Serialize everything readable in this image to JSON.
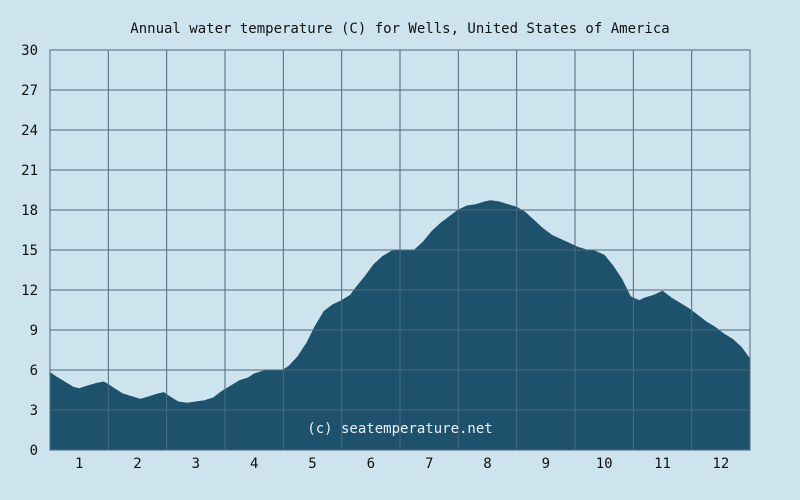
{
  "colors": {
    "background": "#cde3ee",
    "area_fill": "#1e516b",
    "grid": "#4a6a7e",
    "text": "#111111",
    "watermark": "#e8f2f8"
  },
  "chart_data": {
    "type": "area",
    "title": "Annual water temperature (C) for Wells, United States of America",
    "watermark": "(c) seatemperature.net",
    "xlabel": "",
    "ylabel": "",
    "ylim": [
      0,
      30
    ],
    "xlim": [
      0.5,
      12.5
    ],
    "y_ticks": [
      "0",
      "3",
      "6",
      "9",
      "12",
      "15",
      "18",
      "21",
      "24",
      "27",
      "30"
    ],
    "x_ticks": [
      "1",
      "2",
      "3",
      "4",
      "5",
      "6",
      "7",
      "8",
      "9",
      "10",
      "11",
      "12"
    ],
    "grid": true,
    "series": [
      {
        "x": [
          0.5,
          0.6,
          0.75,
          0.9,
          1.0,
          1.15,
          1.3,
          1.42,
          1.5,
          1.6,
          1.75,
          1.9,
          2.05,
          2.2,
          2.35,
          2.45,
          2.55,
          2.7,
          2.85,
          3.0,
          3.15,
          3.3,
          3.45,
          3.6,
          3.75,
          3.9,
          4.0,
          4.15,
          4.3,
          4.5,
          4.6,
          4.75,
          4.9,
          5.05,
          5.2,
          5.35,
          5.5,
          5.65,
          5.75,
          5.9,
          6.05,
          6.2,
          6.35,
          6.5,
          6.6,
          6.75,
          6.9,
          7.05,
          7.2,
          7.35,
          7.5,
          7.65,
          7.8,
          7.95,
          8.05,
          8.2,
          8.35,
          8.5,
          8.65,
          8.8,
          8.95,
          9.1,
          9.25,
          9.4,
          9.55,
          9.7,
          9.85,
          10.0,
          10.15,
          10.3,
          10.45,
          10.6,
          10.7,
          10.85,
          11.0,
          11.15,
          11.3,
          11.45,
          11.6,
          11.75,
          11.9,
          12.05,
          12.2,
          12.35,
          12.5
        ],
        "values": [
          5.8,
          5.5,
          5.1,
          4.7,
          4.6,
          4.8,
          5.0,
          5.1,
          4.9,
          4.6,
          4.2,
          4.0,
          3.8,
          4.0,
          4.2,
          4.3,
          4.0,
          3.6,
          3.5,
          3.6,
          3.7,
          3.9,
          4.4,
          4.8,
          5.2,
          5.4,
          5.7,
          5.9,
          6.0,
          6.0,
          6.3,
          7.0,
          8.0,
          9.3,
          10.4,
          10.9,
          11.2,
          11.6,
          12.2,
          13.0,
          13.9,
          14.5,
          14.9,
          15.0,
          15.0,
          15.0,
          15.6,
          16.4,
          17.0,
          17.5,
          18.0,
          18.3,
          18.4,
          18.6,
          18.7,
          18.6,
          18.4,
          18.2,
          17.8,
          17.2,
          16.6,
          16.1,
          15.8,
          15.5,
          15.2,
          15.0,
          14.9,
          14.6,
          13.8,
          12.8,
          11.5,
          11.2,
          11.4,
          11.6,
          11.9,
          11.4,
          11.0,
          10.6,
          10.1,
          9.6,
          9.2,
          8.7,
          8.3,
          7.7,
          6.8
        ]
      }
    ]
  }
}
